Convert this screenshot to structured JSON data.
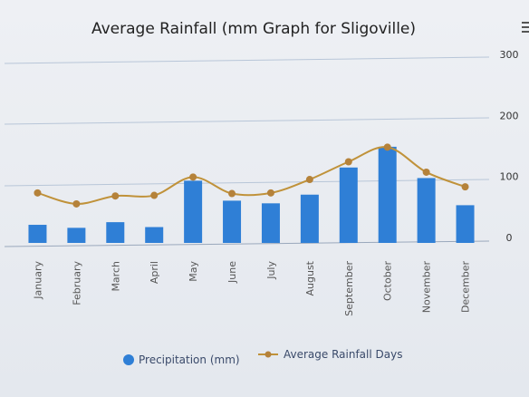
{
  "chart_data": {
    "type": "bar",
    "title": "Average Rainfall (mm Graph for Sligoville)",
    "categories": [
      "January",
      "February",
      "March",
      "April",
      "May",
      "June",
      "July",
      "August",
      "September",
      "October",
      "November",
      "December"
    ],
    "series": [
      {
        "name": "Precipitation (mm)",
        "type": "bar",
        "axis": "left",
        "values": [
          48,
          40,
          55,
          42,
          165,
          112,
          105,
          128,
          200,
          255,
          172,
          100
        ]
      },
      {
        "name": "Average Rainfall Days",
        "type": "line",
        "axis": "right",
        "values": [
          73,
          55,
          68,
          69,
          99,
          72,
          73,
          95,
          124,
          148,
          107,
          83
        ]
      }
    ],
    "right_axis": {
      "ticks": [
        "0",
        "100",
        "200",
        "300"
      ],
      "ylim": [
        0,
        300
      ]
    },
    "left_axis": {
      "ylim": [
        0,
        500
      ]
    },
    "legend": {
      "position": "bottom-center"
    },
    "grid": true,
    "colors": {
      "bar": "#2f7fd6",
      "line": "#c0923a",
      "marker": "#b5823a",
      "grid": "#b8c6d8"
    }
  }
}
